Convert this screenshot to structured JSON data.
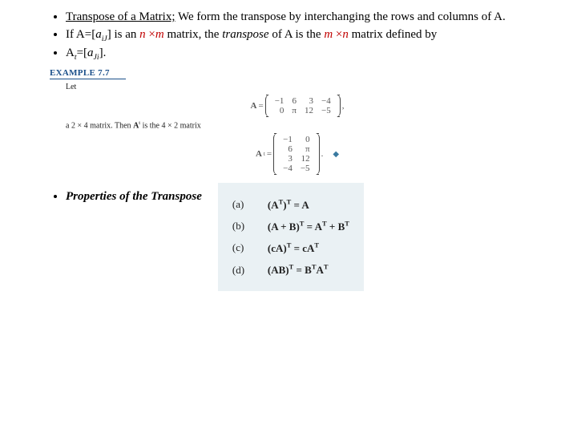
{
  "bullets": {
    "item1_lead": "Transpose of a Matrix;",
    "item1_rest": " We form the transpose by interchanging the rows and columns of A.",
    "item2_pre": "If A=[",
    "item2_sub": "a",
    "item2_subidx": "iJ",
    "item2_mid": "] is an ",
    "item2_n": "n ",
    "item2_times": "×",
    "item2_m": "m",
    "item2_mid2": " matrix, the ",
    "item2_transpose": "transpose",
    "item2_ofA": " of A is the ",
    "item2_m2": "m ",
    "item2_n2": "n",
    "item2_end": " matrix defined by",
    "item3_lead": "A",
    "item3_sup": "t",
    "item3_eq": "=[",
    "item3_a": "a",
    "item3_idx": "Ji",
    "item3_close": "].",
    "item4": "Properties of the Transpose"
  },
  "example": {
    "title": "EXAMPLE 7.7",
    "let": "Let",
    "A_label": "A",
    "eq": "=",
    "A_rows": [
      [
        "−1",
        "6",
        "3",
        "−4"
      ],
      [
        "0",
        "π",
        "12",
        "−5"
      ]
    ],
    "comma": ",",
    "dim_text_a": "a 2 × 4 matrix. Then ",
    "A_t": "A",
    "dim_text_b": " is the 4 × 2 matrix",
    "At_rows": [
      [
        "−1",
        "0"
      ],
      [
        "6",
        "π"
      ],
      [
        "3",
        "12"
      ],
      [
        "−4",
        "−5"
      ]
    ],
    "period": "."
  },
  "properties": {
    "lines": [
      {
        "tag": "(a)",
        "eq": "(Aᵀ)ᵀ = A"
      },
      {
        "tag": "(b)",
        "eq": "(A + B)ᵀ = Aᵀ + Bᵀ"
      },
      {
        "tag": "(c)",
        "eq": "(cA)ᵀ = cAᵀ"
      },
      {
        "tag": "(d)",
        "eq": "(AB)ᵀ = BᵀAᵀ"
      }
    ]
  },
  "styling": {
    "background": "#ffffff",
    "red": "#c00000",
    "props_bg": "#eaf1f4",
    "example_color": "#1a4f8a",
    "font_family": "Times New Roman",
    "base_fontsize_pt": 15,
    "example_fontsize_pt": 11,
    "props_fontsize_pt": 13
  }
}
